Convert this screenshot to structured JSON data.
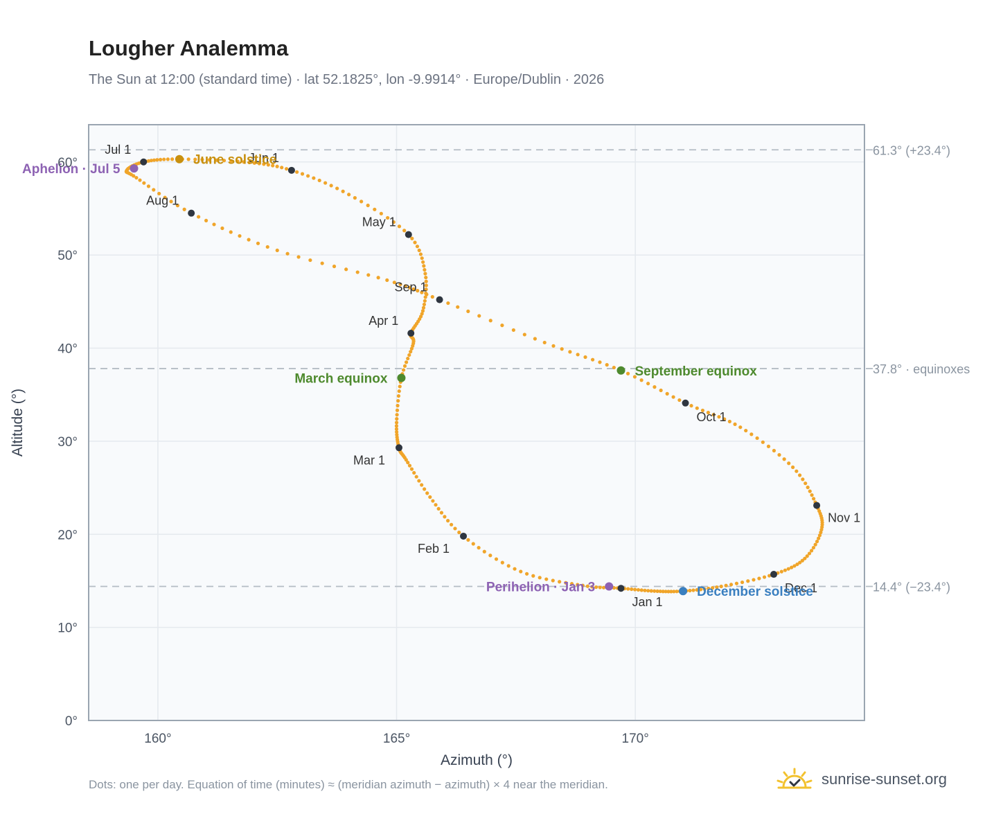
{
  "title": "Lougher Analemma",
  "subtitle": "The Sun at 12:00 (standard time) · lat 52.1825°, lon -9.9914° · Europe/Dublin · 2026",
  "footnote": "Dots: one per day. Equation of time (minutes) ≈ (meridian azimuth − azimuth) × 4 near the meridian.",
  "brand": {
    "name": "sunrise-sunset.org",
    "icon": "sunrise-logo-icon",
    "color": "#f2c12e"
  },
  "chart_data": {
    "type": "scatter",
    "xlabel": "Azimuth (°)",
    "ylabel": "Altitude (°)",
    "xlim": [
      158.55,
      174.8
    ],
    "ylim": [
      0,
      64
    ],
    "x_ticks": [
      160,
      165,
      170
    ],
    "x_tick_labels": [
      "160°",
      "165°",
      "170°"
    ],
    "y_ticks": [
      0,
      10,
      20,
      30,
      40,
      50,
      60
    ],
    "y_tick_labels": [
      "0°",
      "10°",
      "20°",
      "30°",
      "40°",
      "50°",
      "60°"
    ],
    "grid": true,
    "colors": {
      "path": "#f0a52a",
      "month": "#2f3640",
      "equinox": "#4e8a2e",
      "june": "#c8900f",
      "december": "#3a7fc0",
      "apsis": "#8d62b3",
      "reference": "#b4bcc4",
      "plot_bg": "#f8fafc",
      "frame": "#9aa5b1"
    },
    "reference_lines": [
      {
        "y": 61.3,
        "label": "61.3° (+23.4°)"
      },
      {
        "y": 37.8,
        "label": "37.8° · equinoxes"
      },
      {
        "y": 14.4,
        "label": "14.4° (−23.4°)"
      }
    ],
    "series": [
      {
        "kind": "daily_path",
        "points": [
          [
            169.7,
            14.2
          ],
          [
            168.9,
            14.5
          ],
          [
            167.6,
            16.0
          ],
          [
            166.4,
            19.8
          ],
          [
            165.7,
            24.0
          ],
          [
            165.2,
            28.0
          ],
          [
            165.05,
            29.3
          ],
          [
            165.0,
            32.0
          ],
          [
            165.1,
            36.8
          ],
          [
            165.35,
            40.5
          ],
          [
            165.3,
            41.6
          ],
          [
            165.55,
            44.0
          ],
          [
            165.6,
            48.0
          ],
          [
            165.25,
            52.2
          ],
          [
            164.0,
            56.5
          ],
          [
            162.8,
            59.1
          ],
          [
            161.8,
            60.0
          ],
          [
            160.4,
            60.3
          ],
          [
            159.7,
            60.0
          ],
          [
            159.35,
            59.1
          ],
          [
            159.55,
            58.3
          ],
          [
            160.7,
            54.5
          ],
          [
            162.5,
            50.5
          ],
          [
            164.8,
            47.3
          ],
          [
            165.9,
            45.2
          ],
          [
            168.1,
            40.6
          ],
          [
            169.7,
            37.6
          ],
          [
            171.05,
            34.1
          ],
          [
            172.2,
            31.5
          ],
          [
            173.3,
            27.2
          ],
          [
            173.8,
            23.1
          ],
          [
            173.9,
            20.5
          ],
          [
            173.55,
            17.4
          ],
          [
            172.9,
            15.7
          ],
          [
            171.8,
            14.4
          ],
          [
            171.0,
            13.9
          ],
          [
            170.4,
            13.9
          ],
          [
            169.7,
            14.2
          ]
        ]
      }
    ],
    "month_markers": [
      {
        "label": "Jan 1",
        "x": 169.7,
        "y": 14.2,
        "anchor": "below"
      },
      {
        "label": "Feb 1",
        "x": 166.4,
        "y": 19.8,
        "anchor": "below-left"
      },
      {
        "label": "Mar 1",
        "x": 165.05,
        "y": 29.3,
        "anchor": "below-left"
      },
      {
        "label": "Apr 1",
        "x": 165.3,
        "y": 41.6,
        "anchor": "above-left"
      },
      {
        "label": "May 1",
        "x": 165.25,
        "y": 52.2,
        "anchor": "above-left"
      },
      {
        "label": "Jun 1",
        "x": 162.8,
        "y": 59.1,
        "anchor": "above-left"
      },
      {
        "label": "Jul 1",
        "x": 159.7,
        "y": 60.0,
        "anchor": "above-left"
      },
      {
        "label": "Aug 1",
        "x": 160.7,
        "y": 54.5,
        "anchor": "above-left"
      },
      {
        "label": "Sep 1",
        "x": 165.9,
        "y": 45.2,
        "anchor": "above-left"
      },
      {
        "label": "Oct 1",
        "x": 171.05,
        "y": 34.1,
        "anchor": "below"
      },
      {
        "label": "Nov 1",
        "x": 173.8,
        "y": 23.1,
        "anchor": "below-right"
      },
      {
        "label": "Dec 1",
        "x": 172.9,
        "y": 15.7,
        "anchor": "below"
      }
    ],
    "events": [
      {
        "label": "June solstice",
        "x": 160.45,
        "y": 60.3,
        "color": "#c8900f",
        "side": "right"
      },
      {
        "label": "Aphelion · Jul 5",
        "x": 159.5,
        "y": 59.3,
        "color": "#8d62b3",
        "side": "left"
      },
      {
        "label": "March equinox",
        "x": 165.1,
        "y": 36.8,
        "color": "#4e8a2e",
        "side": "left"
      },
      {
        "label": "September equinox",
        "x": 169.7,
        "y": 37.6,
        "color": "#4e8a2e",
        "side": "right"
      },
      {
        "label": "Perihelion · Jan 3",
        "x": 169.45,
        "y": 14.4,
        "color": "#8d62b3",
        "side": "left"
      },
      {
        "label": "December solstice",
        "x": 171.0,
        "y": 13.9,
        "color": "#3a7fc0",
        "side": "right"
      }
    ]
  }
}
